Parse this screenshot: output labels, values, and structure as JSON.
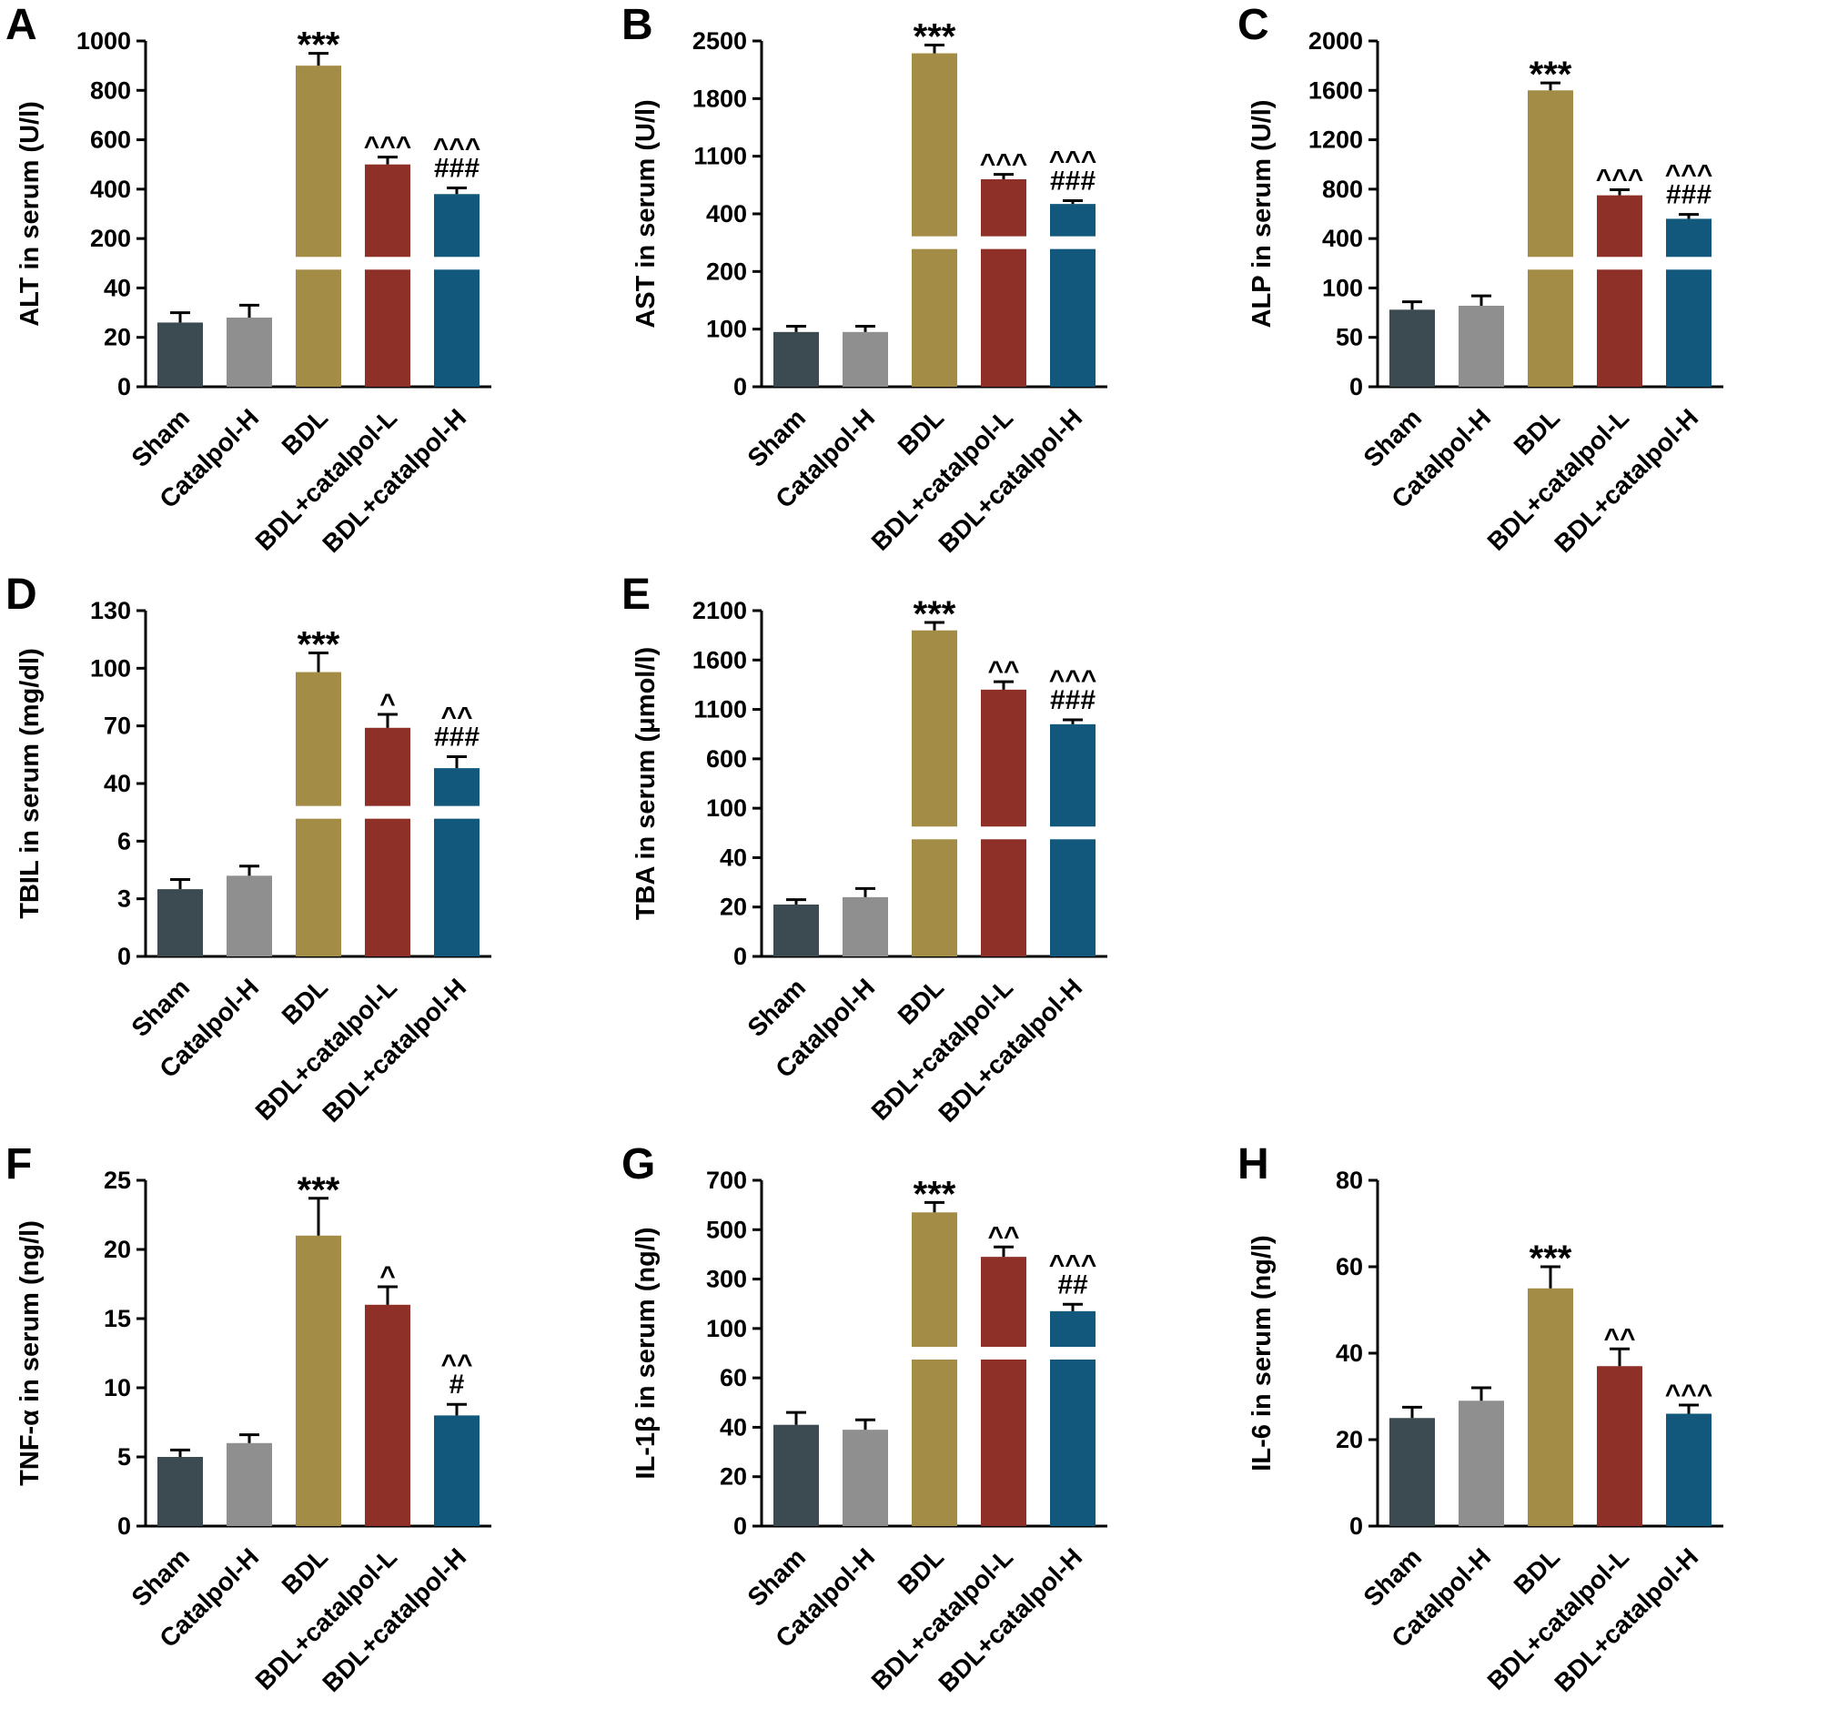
{
  "figure": {
    "background": "#ffffff",
    "categories": [
      "Sham",
      "Catalpol-H",
      "BDL",
      "BDL+catalpol-L",
      "BDL+catalpol-H"
    ],
    "bar_colors": [
      "#3c4a51",
      "#8f8f8f",
      "#a38c46",
      "#8e2f28",
      "#11587c"
    ],
    "axis_color": "#000000",
    "layout_rows": [
      [
        "A",
        "B",
        "C"
      ],
      [
        "D",
        "E",
        null
      ],
      [
        "F",
        "G",
        "H"
      ]
    ]
  },
  "chart_data": [
    {
      "id": "A",
      "type": "bar",
      "ylabel": "ALT in serum (U/l)",
      "ticks": [
        0,
        20,
        40,
        200,
        400,
        600,
        800,
        1000
      ],
      "break_after": 2,
      "categories": [
        "Sham",
        "Catalpol-H",
        "BDL",
        "BDL+catalpol-L",
        "BDL+catalpol-H"
      ],
      "values": [
        26,
        28,
        900,
        500,
        380
      ],
      "errors": [
        4,
        5,
        50,
        30,
        25
      ],
      "annotations": [
        [],
        [],
        [
          "***"
        ],
        [
          "^^^"
        ],
        [
          "^^^",
          "###"
        ]
      ]
    },
    {
      "id": "B",
      "type": "bar",
      "ylabel": "AST in serum (U/l)",
      "ticks": [
        0,
        100,
        200,
        400,
        1100,
        1800,
        2500
      ],
      "break_after": 2,
      "categories": [
        "Sham",
        "Catalpol-H",
        "BDL",
        "BDL+catalpol-L",
        "BDL+catalpol-H"
      ],
      "values": [
        95,
        95,
        2350,
        820,
        520
      ],
      "errors": [
        10,
        10,
        100,
        60,
        40
      ],
      "annotations": [
        [],
        [],
        [
          "***"
        ],
        [
          "^^^"
        ],
        [
          "^^^",
          "###"
        ]
      ]
    },
    {
      "id": "C",
      "type": "bar",
      "ylabel": "ALP in serum (U/l)",
      "ticks": [
        0,
        50,
        100,
        400,
        800,
        1200,
        1600,
        2000
      ],
      "break_after": 2,
      "categories": [
        "Sham",
        "Catalpol-H",
        "BDL",
        "BDL+catalpol-L",
        "BDL+catalpol-H"
      ],
      "values": [
        78,
        82,
        1600,
        750,
        560
      ],
      "errors": [
        8,
        10,
        60,
        45,
        35
      ],
      "annotations": [
        [],
        [],
        [
          "***"
        ],
        [
          "^^^"
        ],
        [
          "^^^",
          "###"
        ]
      ]
    },
    {
      "id": "D",
      "type": "bar",
      "ylabel": "TBIL in serum (mg/dl)",
      "ticks": [
        0,
        3,
        6,
        40,
        70,
        100,
        130
      ],
      "break_after": 2,
      "categories": [
        "Sham",
        "Catalpol-H",
        "BDL",
        "BDL+catalpol-L",
        "BDL+catalpol-H"
      ],
      "values": [
        3.5,
        4.2,
        98,
        69,
        48
      ],
      "errors": [
        0.5,
        0.5,
        10,
        7,
        6
      ],
      "annotations": [
        [],
        [],
        [
          "***"
        ],
        [
          "^"
        ],
        [
          "^^",
          "###"
        ]
      ]
    },
    {
      "id": "E",
      "type": "bar",
      "ylabel": "TBA in serum (μmol/l)",
      "ticks": [
        0,
        20,
        40,
        100,
        600,
        1100,
        1600,
        2100
      ],
      "break_after": 2,
      "categories": [
        "Sham",
        "Catalpol-H",
        "BDL",
        "BDL+catalpol-L",
        "BDL+catalpol-H"
      ],
      "values": [
        21,
        24,
        1900,
        1300,
        950
      ],
      "errors": [
        2,
        3.5,
        80,
        80,
        45
      ],
      "annotations": [
        [],
        [],
        [
          "***"
        ],
        [
          "^^"
        ],
        [
          "^^^",
          "###"
        ]
      ]
    },
    {
      "id": "F",
      "type": "bar",
      "ylabel": "TNF-α in serum (ng/l)",
      "ticks": [
        0,
        5,
        10,
        15,
        20,
        25
      ],
      "break_after": null,
      "categories": [
        "Sham",
        "Catalpol-H",
        "BDL",
        "BDL+catalpol-L",
        "BDL+catalpol-H"
      ],
      "values": [
        5,
        6,
        21,
        16,
        8
      ],
      "errors": [
        0.5,
        0.6,
        2.7,
        1.3,
        0.8
      ],
      "annotations": [
        [],
        [],
        [
          "***"
        ],
        [
          "^"
        ],
        [
          "^^",
          "#"
        ]
      ]
    },
    {
      "id": "G",
      "type": "bar",
      "ylabel": "IL-1β in serum (ng/l)",
      "ticks": [
        0,
        20,
        40,
        60,
        100,
        300,
        500,
        700
      ],
      "break_after": 3,
      "categories": [
        "Sham",
        "Catalpol-H",
        "BDL",
        "BDL+catalpol-L",
        "BDL+catalpol-H"
      ],
      "values": [
        41,
        39,
        570,
        390,
        170
      ],
      "errors": [
        5,
        4,
        40,
        40,
        28
      ],
      "annotations": [
        [],
        [],
        [
          "***"
        ],
        [
          "^^"
        ],
        [
          "^^^",
          "##"
        ]
      ]
    },
    {
      "id": "H",
      "type": "bar",
      "ylabel": "IL-6 in serum (ng/l)",
      "ticks": [
        0,
        20,
        40,
        60,
        80
      ],
      "break_after": null,
      "categories": [
        "Sham",
        "Catalpol-H",
        "BDL",
        "BDL+catalpol-L",
        "BDL+catalpol-H"
      ],
      "values": [
        25,
        29,
        55,
        37,
        26
      ],
      "errors": [
        2.5,
        3,
        5,
        4,
        2
      ],
      "annotations": [
        [],
        [],
        [
          "***"
        ],
        [
          "^^"
        ],
        [
          "^^^"
        ]
      ]
    }
  ]
}
